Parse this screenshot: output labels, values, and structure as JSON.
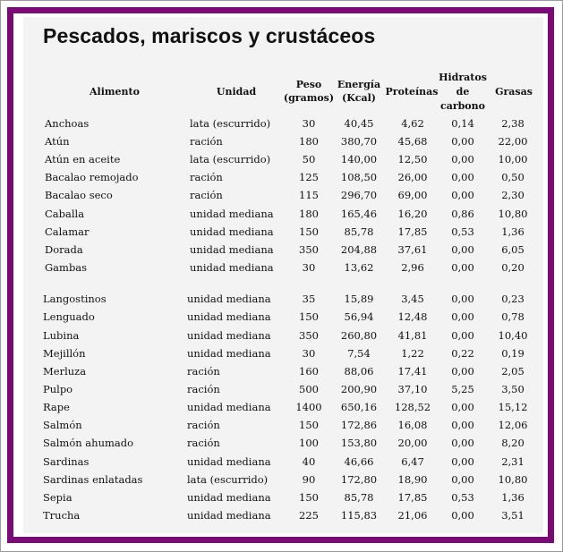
{
  "title": "Pescados, mariscos y crustáceos",
  "colors": {
    "frame": "#7a0a78",
    "sheet": "#f3f3f3",
    "text": "#111111"
  },
  "headers": {
    "alimento": "Alimento",
    "unidad": "Unidad",
    "peso_1": "Peso",
    "peso_2": "(gramos)",
    "energia_1": "Energía",
    "energia_2": "(Kcal)",
    "proteinas": "Proteínas",
    "hidratos_1": "Hidratos",
    "hidratos_2": "de",
    "hidratos_3": "carbono",
    "grasas": "Grasas"
  },
  "rows": [
    {
      "alimento": "Anchoas",
      "unidad": "lata (escurrido)",
      "peso": "30",
      "energia": "40,45",
      "proteinas": "4,62",
      "hidratos": "0,14",
      "grasas": "2,38"
    },
    {
      "alimento": "Atún",
      "unidad": "ración",
      "peso": "180",
      "energia": "380,70",
      "proteinas": "45,68",
      "hidratos": "0,00",
      "grasas": "22,00"
    },
    {
      "alimento": "Atún en aceite",
      "unidad": "lata (escurrido)",
      "peso": "50",
      "energia": "140,00",
      "proteinas": "12,50",
      "hidratos": "0,00",
      "grasas": "10,00"
    },
    {
      "alimento": "Bacalao remojado",
      "unidad": "ración",
      "peso": "125",
      "energia": "108,50",
      "proteinas": "26,00",
      "hidratos": "0,00",
      "grasas": "0,50"
    },
    {
      "alimento": "Bacalao seco",
      "unidad": "ración",
      "peso": "115",
      "energia": "296,70",
      "proteinas": "69,00",
      "hidratos": "0,00",
      "grasas": "2,30"
    },
    {
      "alimento": "Caballa",
      "unidad": "unidad mediana",
      "peso": "180",
      "energia": "165,46",
      "proteinas": "16,20",
      "hidratos": "0,86",
      "grasas": "10,80"
    },
    {
      "alimento": "Calamar",
      "unidad": "unidad mediana",
      "peso": "150",
      "energia": "85,78",
      "proteinas": "17,85",
      "hidratos": "0,53",
      "grasas": "1,36"
    },
    {
      "alimento": "Dorada",
      "unidad": "unidad mediana",
      "peso": "350",
      "energia": "204,88",
      "proteinas": "37,61",
      "hidratos": "0,00",
      "grasas": "6,05"
    },
    {
      "alimento": "Gambas",
      "unidad": "unidad mediana",
      "peso": "30",
      "energia": "13,62",
      "proteinas": "2,96",
      "hidratos": "0,00",
      "grasas": "0,20"
    },
    {
      "alimento": "Langostinos",
      "unidad": "unidad mediana",
      "peso": "35",
      "energia": "15,89",
      "proteinas": "3,45",
      "hidratos": "0,00",
      "grasas": "0,23"
    },
    {
      "alimento": "Lenguado",
      "unidad": "unidad mediana",
      "peso": "150",
      "energia": "56,94",
      "proteinas": "12,48",
      "hidratos": "0,00",
      "grasas": "0,78"
    },
    {
      "alimento": "Lubina",
      "unidad": "unidad mediana",
      "peso": "350",
      "energia": "260,80",
      "proteinas": "41,81",
      "hidratos": "0,00",
      "grasas": "10,40"
    },
    {
      "alimento": "Mejillón",
      "unidad": "unidad mediana",
      "peso": "30",
      "energia": "7,54",
      "proteinas": "1,22",
      "hidratos": "0,22",
      "grasas": "0,19"
    },
    {
      "alimento": "Merluza",
      "unidad": "ración",
      "peso": "160",
      "energia": "88,06",
      "proteinas": "17,41",
      "hidratos": "0,00",
      "grasas": "2,05"
    },
    {
      "alimento": "Pulpo",
      "unidad": "ración",
      "peso": "500",
      "energia": "200,90",
      "proteinas": "37,10",
      "hidratos": "5,25",
      "grasas": "3,50"
    },
    {
      "alimento": "Rape",
      "unidad": "unidad mediana",
      "peso": "1400",
      "energia": "650,16",
      "proteinas": "128,52",
      "hidratos": "0,00",
      "grasas": "15,12"
    },
    {
      "alimento": "Salmón",
      "unidad": "ración",
      "peso": "150",
      "energia": "172,86",
      "proteinas": "16,08",
      "hidratos": "0,00",
      "grasas": "12,06"
    },
    {
      "alimento": "Salmón ahumado",
      "unidad": "ración",
      "peso": "100",
      "energia": "153,80",
      "proteinas": "20,00",
      "hidratos": "0,00",
      "grasas": "8,20"
    },
    {
      "alimento": "Sardinas",
      "unidad": "unidad mediana",
      "peso": "40",
      "energia": "46,66",
      "proteinas": "6,47",
      "hidratos": "0,00",
      "grasas": "2,31"
    },
    {
      "alimento": "Sardinas enlatadas",
      "unidad": "lata (escurrido)",
      "peso": "90",
      "energia": "172,80",
      "proteinas": "18,90",
      "hidratos": "0,00",
      "grasas": "10,80"
    },
    {
      "alimento": "Sepia",
      "unidad": "unidad mediana",
      "peso": "150",
      "energia": "85,78",
      "proteinas": "17,85",
      "hidratos": "0,53",
      "grasas": "1,36"
    },
    {
      "alimento": "Trucha",
      "unidad": "unidad mediana",
      "peso": "225",
      "energia": "115,83",
      "proteinas": "21,06",
      "hidratos": "0,00",
      "grasas": "3,51"
    }
  ]
}
